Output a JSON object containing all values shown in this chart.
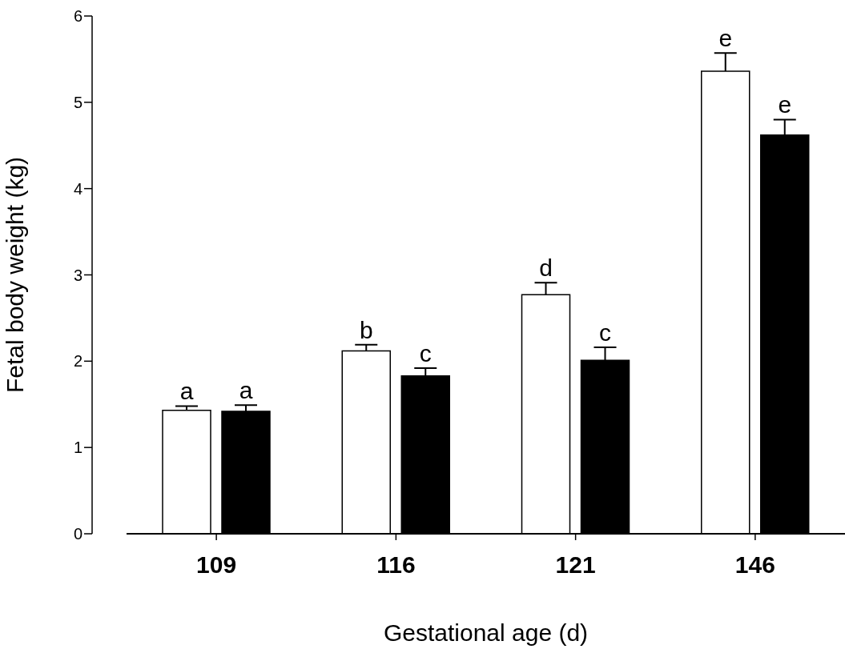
{
  "chart_data": {
    "type": "bar",
    "xlabel": "Gestational age (d)",
    "ylabel": "Fetal body weight (kg)",
    "categories": [
      "109",
      "116",
      "121",
      "146"
    ],
    "series": [
      {
        "color": "#ffffff",
        "values": [
          1.43,
          2.12,
          2.77,
          5.36
        ],
        "errors": [
          [
            1.43,
            1.48
          ],
          [
            2.12,
            2.19
          ],
          [
            2.77,
            2.91
          ],
          [
            5.36,
            5.57
          ]
        ]
      },
      {
        "color": "#000000",
        "values": [
          1.42,
          1.83,
          2.01,
          4.62
        ],
        "errors": [
          [
            1.42,
            1.49
          ],
          [
            1.83,
            1.92
          ],
          [
            2.01,
            2.16
          ],
          [
            4.62,
            4.8
          ]
        ]
      }
    ],
    "ylim": [
      0,
      6
    ],
    "yticks": [
      0,
      1,
      2,
      3,
      4,
      5,
      6
    ],
    "grid": false,
    "legend": false,
    "annotations": [
      "a",
      "a",
      "b",
      "c",
      "d",
      "c",
      "e",
      "e"
    ]
  }
}
